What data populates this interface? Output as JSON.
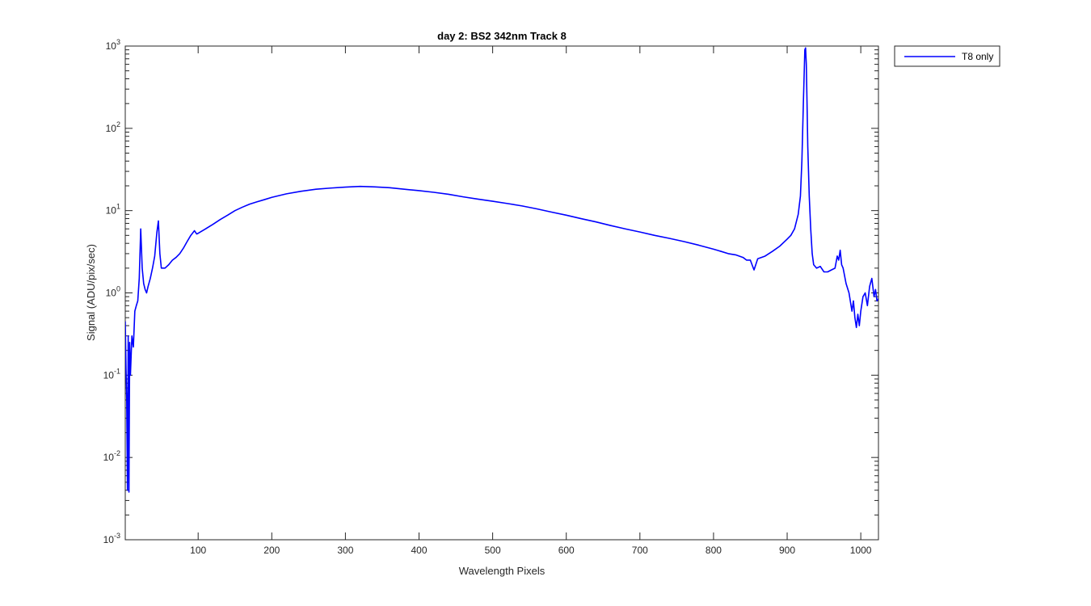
{
  "chart_data": {
    "type": "line",
    "title": "day 2: BS2  342nm  Track 8",
    "xlabel": "Wavelength Pixels",
    "ylabel": "Signal (ADU/pix/sec)",
    "xlim": [
      1,
      1024
    ],
    "ylim": [
      0.001,
      1000
    ],
    "yscale": "log",
    "x_ticks": [
      100,
      200,
      300,
      400,
      500,
      600,
      700,
      800,
      900,
      1000
    ],
    "y_ticks": [
      {
        "value": 0.001,
        "base": "10",
        "exp": "-3"
      },
      {
        "value": 0.01,
        "base": "10",
        "exp": "-2"
      },
      {
        "value": 0.1,
        "base": "10",
        "exp": "-1"
      },
      {
        "value": 1,
        "base": "10",
        "exp": "0"
      },
      {
        "value": 10,
        "base": "10",
        "exp": "1"
      },
      {
        "value": 100,
        "base": "10",
        "exp": "2"
      },
      {
        "value": 1000,
        "base": "10",
        "exp": "3"
      }
    ],
    "grid": false,
    "legend_position": "outside-top-right",
    "color": "#0000ff",
    "series": [
      {
        "name": "T8 only",
        "points": [
          [
            1,
            0.45
          ],
          [
            2,
            0.12
          ],
          [
            3,
            0.05
          ],
          [
            4,
            0.004
          ],
          [
            5,
            0.3
          ],
          [
            6,
            0.0038
          ],
          [
            7,
            0.25
          ],
          [
            8,
            0.1
          ],
          [
            10,
            0.3
          ],
          [
            12,
            0.22
          ],
          [
            14,
            0.6
          ],
          [
            16,
            0.7
          ],
          [
            18,
            0.8
          ],
          [
            20,
            1.5
          ],
          [
            22,
            6.0
          ],
          [
            24,
            2.0
          ],
          [
            26,
            1.3
          ],
          [
            28,
            1.1
          ],
          [
            30,
            1.0
          ],
          [
            32,
            1.2
          ],
          [
            35,
            1.5
          ],
          [
            38,
            2.0
          ],
          [
            41,
            2.8
          ],
          [
            44,
            5.5
          ],
          [
            46,
            7.5
          ],
          [
            48,
            3.0
          ],
          [
            50,
            2.0
          ],
          [
            55,
            2.0
          ],
          [
            60,
            2.2
          ],
          [
            65,
            2.5
          ],
          [
            70,
            2.7
          ],
          [
            75,
            3.0
          ],
          [
            80,
            3.5
          ],
          [
            85,
            4.2
          ],
          [
            90,
            5.0
          ],
          [
            95,
            5.7
          ],
          [
            98,
            5.2
          ],
          [
            100,
            5.3
          ],
          [
            110,
            6.0
          ],
          [
            120,
            6.8
          ],
          [
            130,
            7.8
          ],
          [
            140,
            8.8
          ],
          [
            150,
            10.0
          ],
          [
            160,
            11.0
          ],
          [
            170,
            12.0
          ],
          [
            180,
            12.8
          ],
          [
            190,
            13.6
          ],
          [
            200,
            14.5
          ],
          [
            220,
            16.0
          ],
          [
            240,
            17.2
          ],
          [
            260,
            18.2
          ],
          [
            280,
            18.8
          ],
          [
            300,
            19.3
          ],
          [
            320,
            19.7
          ],
          [
            340,
            19.4
          ],
          [
            360,
            19.0
          ],
          [
            380,
            18.2
          ],
          [
            400,
            17.5
          ],
          [
            420,
            16.7
          ],
          [
            440,
            15.8
          ],
          [
            460,
            14.7
          ],
          [
            480,
            13.8
          ],
          [
            500,
            13.0
          ],
          [
            520,
            12.2
          ],
          [
            540,
            11.4
          ],
          [
            560,
            10.5
          ],
          [
            580,
            9.6
          ],
          [
            600,
            8.8
          ],
          [
            620,
            8.0
          ],
          [
            640,
            7.3
          ],
          [
            660,
            6.6
          ],
          [
            680,
            6.0
          ],
          [
            700,
            5.5
          ],
          [
            720,
            5.0
          ],
          [
            740,
            4.6
          ],
          [
            760,
            4.2
          ],
          [
            780,
            3.8
          ],
          [
            800,
            3.4
          ],
          [
            810,
            3.2
          ],
          [
            820,
            3.0
          ],
          [
            830,
            2.9
          ],
          [
            840,
            2.7
          ],
          [
            845,
            2.5
          ],
          [
            850,
            2.5
          ],
          [
            855,
            1.9
          ],
          [
            860,
            2.6
          ],
          [
            870,
            2.8
          ],
          [
            880,
            3.2
          ],
          [
            890,
            3.7
          ],
          [
            900,
            4.5
          ],
          [
            905,
            5.0
          ],
          [
            910,
            6.0
          ],
          [
            915,
            9.0
          ],
          [
            918,
            15.0
          ],
          [
            920,
            40.0
          ],
          [
            922,
            200.0
          ],
          [
            924,
            900.0
          ],
          [
            925,
            950.0
          ],
          [
            926,
            600.0
          ],
          [
            927,
            200.0
          ],
          [
            928,
            60.0
          ],
          [
            930,
            15.0
          ],
          [
            932,
            6.0
          ],
          [
            934,
            3.0
          ],
          [
            936,
            2.2
          ],
          [
            940,
            2.0
          ],
          [
            945,
            2.1
          ],
          [
            950,
            1.8
          ],
          [
            955,
            1.8
          ],
          [
            960,
            1.9
          ],
          [
            965,
            2.0
          ],
          [
            968,
            2.8
          ],
          [
            970,
            2.5
          ],
          [
            972,
            3.3
          ],
          [
            974,
            2.2
          ],
          [
            976,
            2.0
          ],
          [
            980,
            1.3
          ],
          [
            984,
            1.0
          ],
          [
            988,
            0.6
          ],
          [
            990,
            0.8
          ],
          [
            992,
            0.5
          ],
          [
            994,
            0.38
          ],
          [
            996,
            0.55
          ],
          [
            998,
            0.4
          ],
          [
            1000,
            0.6
          ],
          [
            1003,
            0.9
          ],
          [
            1006,
            1.0
          ],
          [
            1009,
            0.7
          ],
          [
            1012,
            1.2
          ],
          [
            1015,
            1.5
          ],
          [
            1018,
            0.9
          ],
          [
            1020,
            1.1
          ],
          [
            1022,
            0.8
          ],
          [
            1024,
            0.85
          ]
        ]
      }
    ]
  }
}
